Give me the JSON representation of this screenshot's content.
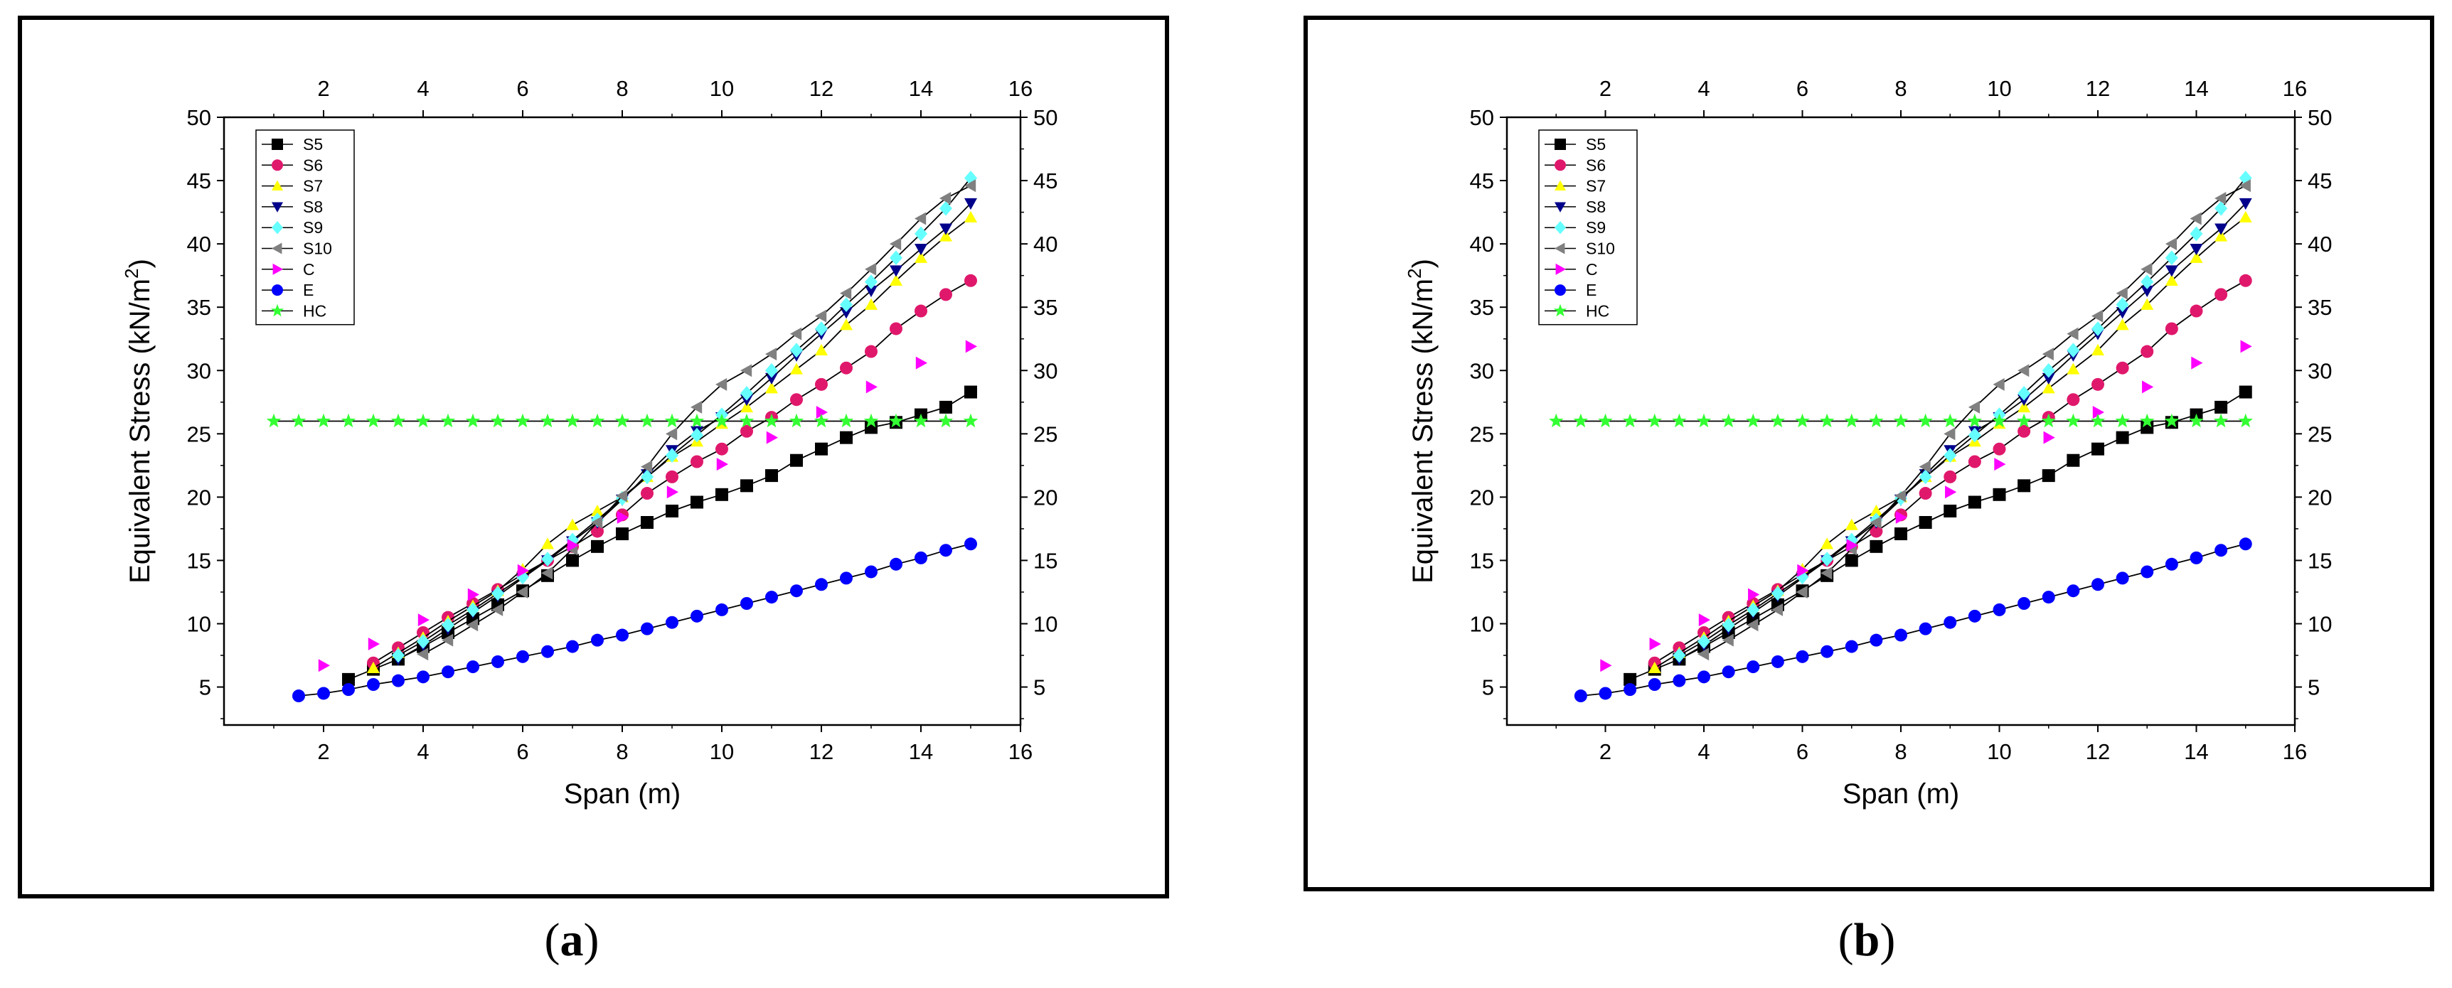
{
  "captions": {
    "a": {
      "open": "(",
      "letter": "a",
      "close": ")"
    },
    "b": {
      "open": "(",
      "letter": "b",
      "close": ")"
    }
  },
  "chart_data": [
    {
      "panel": "a",
      "type": "scatter",
      "xlabel": "Span (m)",
      "ylabel_prefix": "Equivalent Stress (kN/m",
      "ylabel_sup": "2",
      "ylabel_suffix": ")",
      "xlim": [
        0,
        16
      ],
      "ylim": [
        2,
        50
      ],
      "x_ticks": [
        "2",
        "4",
        "6",
        "8",
        "10",
        "12",
        "14",
        "16"
      ],
      "y_ticks": [
        "5",
        "10",
        "15",
        "20",
        "25",
        "30",
        "35",
        "40",
        "45",
        "50"
      ],
      "legend_position": "top-left",
      "series": [
        {
          "name": "S5",
          "color": "#000000",
          "marker": "square",
          "x": [
            2.5,
            3,
            3.5,
            4,
            4.5,
            5,
            5.5,
            6,
            6.5,
            7,
            7.5,
            8,
            8.5,
            9,
            9.5,
            10,
            10.5,
            11,
            11.5,
            12,
            12.5,
            13,
            13.5,
            14,
            14.5,
            15
          ],
          "y": [
            5.6,
            6.4,
            7.2,
            8.2,
            9.3,
            10.4,
            11.5,
            12.6,
            13.8,
            15.0,
            16.1,
            17.1,
            18.0,
            18.9,
            19.6,
            20.2,
            20.9,
            21.7,
            22.9,
            23.8,
            24.7,
            25.5,
            25.9,
            26.5,
            27.1,
            28.3
          ]
        },
        {
          "name": "S6",
          "color": "#e0186c",
          "marker": "circle",
          "x": [
            3,
            3.5,
            4,
            4.5,
            5,
            5.5,
            6,
            6.5,
            7,
            7.5,
            8,
            8.5,
            9,
            9.5,
            10,
            10.5,
            11,
            11.5,
            12,
            12.5,
            13,
            13.5,
            14,
            14.5,
            15
          ],
          "y": [
            6.9,
            8.1,
            9.3,
            10.5,
            11.6,
            12.7,
            13.9,
            15.0,
            16.1,
            17.3,
            18.6,
            20.3,
            21.6,
            22.8,
            23.8,
            25.2,
            26.3,
            27.7,
            28.9,
            30.2,
            31.5,
            33.3,
            34.7,
            36.0,
            37.1
          ]
        },
        {
          "name": "S7",
          "color": "#ffff00",
          "marker": "triangle-up",
          "x": [
            3,
            3.5,
            4,
            4.5,
            5,
            5.5,
            6,
            6.5,
            7,
            7.5,
            8,
            8.5,
            9,
            9.5,
            10,
            10.5,
            11,
            11.5,
            12,
            12.5,
            13,
            13.5,
            14,
            14.5,
            15
          ],
          "y": [
            6.5,
            7.7,
            8.9,
            10.2,
            11.4,
            12.6,
            14.3,
            16.3,
            17.8,
            18.9,
            20.0,
            21.6,
            23.2,
            24.4,
            25.8,
            27.1,
            28.6,
            30.1,
            31.6,
            33.6,
            35.2,
            37.1,
            38.9,
            40.6,
            42.1
          ]
        },
        {
          "name": "S8",
          "color": "#00008b",
          "marker": "triangle-down",
          "x": [
            3.5,
            4,
            4.5,
            5,
            5.5,
            6,
            6.5,
            7,
            7.5,
            8,
            8.5,
            9,
            9.5,
            10,
            10.5,
            11,
            11.5,
            12,
            12.5,
            13,
            13.5,
            14,
            14.5,
            15
          ],
          "y": [
            7.2,
            8.3,
            9.6,
            10.9,
            12.2,
            13.6,
            15.0,
            16.5,
            18.0,
            19.8,
            21.8,
            23.7,
            25.2,
            26.3,
            27.7,
            29.4,
            31.2,
            32.9,
            34.6,
            36.3,
            37.9,
            39.6,
            41.2,
            43.2
          ]
        },
        {
          "name": "S9",
          "color": "#66ffff",
          "marker": "diamond",
          "x": [
            3.5,
            4,
            4.5,
            5,
            5.5,
            6,
            6.5,
            7,
            7.5,
            8,
            8.5,
            9,
            9.5,
            10,
            10.5,
            11,
            11.5,
            12,
            12.5,
            13,
            13.5,
            14,
            14.5,
            15
          ],
          "y": [
            7.5,
            8.6,
            9.9,
            11.1,
            12.4,
            13.7,
            15.1,
            16.6,
            18.2,
            19.9,
            21.6,
            23.3,
            24.9,
            26.5,
            28.2,
            30.0,
            31.6,
            33.3,
            35.2,
            37.0,
            38.9,
            40.8,
            42.8,
            45.2
          ]
        },
        {
          "name": "S10",
          "color": "#808080",
          "marker": "triangle-left",
          "x": [
            4,
            4.5,
            5,
            5.5,
            6,
            6.5,
            7,
            7.5,
            8,
            8.5,
            9,
            9.5,
            10,
            10.5,
            11,
            11.5,
            12,
            12.5,
            13,
            13.5,
            14,
            14.5,
            15
          ],
          "y": [
            7.6,
            8.7,
            9.9,
            11.1,
            12.5,
            14.0,
            15.9,
            18.0,
            20.1,
            22.4,
            25.0,
            27.1,
            28.9,
            30.0,
            31.3,
            32.9,
            34.3,
            36.1,
            38.0,
            40.0,
            42.0,
            43.6,
            44.6
          ]
        },
        {
          "name": "C",
          "color": "#ff00ff",
          "marker": "triangle-right",
          "x": [
            2,
            3,
            4,
            5,
            6,
            7,
            8,
            9,
            10,
            11,
            12,
            13,
            14,
            15
          ],
          "y": [
            6.7,
            8.4,
            10.3,
            12.3,
            14.2,
            16.2,
            18.4,
            20.4,
            22.6,
            24.7,
            26.7,
            28.7,
            30.6,
            31.9
          ]
        },
        {
          "name": "E",
          "color": "#0000ff",
          "marker": "circle",
          "x": [
            1.5,
            2,
            2.5,
            3,
            3.5,
            4,
            4.5,
            5,
            5.5,
            6,
            6.5,
            7,
            7.5,
            8,
            8.5,
            9,
            9.5,
            10,
            10.5,
            11,
            11.5,
            12,
            12.5,
            13,
            13.5,
            14,
            14.5,
            15
          ],
          "y": [
            4.3,
            4.5,
            4.8,
            5.2,
            5.5,
            5.8,
            6.2,
            6.6,
            7.0,
            7.4,
            7.8,
            8.2,
            8.7,
            9.1,
            9.6,
            10.1,
            10.6,
            11.1,
            11.6,
            12.1,
            12.6,
            13.1,
            13.6,
            14.1,
            14.7,
            15.2,
            15.8,
            16.3
          ]
        },
        {
          "name": "HC",
          "color": "#33ff33",
          "marker": "star",
          "x": [
            1,
            1.5,
            2,
            2.5,
            3,
            3.5,
            4,
            4.5,
            5,
            5.5,
            6,
            6.5,
            7,
            7.5,
            8,
            8.5,
            9,
            9.5,
            10,
            10.5,
            11,
            11.5,
            12,
            12.5,
            13,
            13.5,
            14,
            14.5,
            15
          ],
          "y": [
            26,
            26,
            26,
            26,
            26,
            26,
            26,
            26,
            26,
            26,
            26,
            26,
            26,
            26,
            26,
            26,
            26,
            26,
            26,
            26,
            26,
            26,
            26,
            26,
            26,
            26,
            26,
            26,
            26
          ]
        }
      ]
    },
    {
      "panel": "b",
      "type": "scatter",
      "xlabel": "Span (m)",
      "ylabel_prefix": "Equivalent Stress (kN/m",
      "ylabel_sup": "2",
      "ylabel_suffix": ")",
      "xlim": [
        0,
        16
      ],
      "ylim": [
        2,
        50
      ],
      "x_ticks": [
        "2",
        "4",
        "6",
        "8",
        "10",
        "12",
        "14",
        "16"
      ],
      "y_ticks": [
        "5",
        "10",
        "15",
        "20",
        "25",
        "30",
        "35",
        "40",
        "45",
        "50"
      ],
      "legend_position": "top-left",
      "series": [
        {
          "name": "S5",
          "color": "#000000",
          "marker": "square",
          "x": [
            2.5,
            3,
            3.5,
            4,
            4.5,
            5,
            5.5,
            6,
            6.5,
            7,
            7.5,
            8,
            8.5,
            9,
            9.5,
            10,
            10.5,
            11,
            11.5,
            12,
            12.5,
            13,
            13.5,
            14,
            14.5,
            15
          ],
          "y": [
            5.6,
            6.4,
            7.2,
            8.2,
            9.3,
            10.4,
            11.5,
            12.6,
            13.8,
            15.0,
            16.1,
            17.1,
            18.0,
            18.9,
            19.6,
            20.2,
            20.9,
            21.7,
            22.9,
            23.8,
            24.7,
            25.5,
            25.9,
            26.5,
            27.1,
            28.3
          ]
        },
        {
          "name": "S6",
          "color": "#e0186c",
          "marker": "circle",
          "x": [
            3,
            3.5,
            4,
            4.5,
            5,
            5.5,
            6,
            6.5,
            7,
            7.5,
            8,
            8.5,
            9,
            9.5,
            10,
            10.5,
            11,
            11.5,
            12,
            12.5,
            13,
            13.5,
            14,
            14.5,
            15
          ],
          "y": [
            6.9,
            8.1,
            9.3,
            10.5,
            11.6,
            12.7,
            13.9,
            15.0,
            16.1,
            17.3,
            18.6,
            20.3,
            21.6,
            22.8,
            23.8,
            25.2,
            26.3,
            27.7,
            28.9,
            30.2,
            31.5,
            33.3,
            34.7,
            36.0,
            37.1
          ]
        },
        {
          "name": "S7",
          "color": "#ffff00",
          "marker": "triangle-up",
          "x": [
            3,
            3.5,
            4,
            4.5,
            5,
            5.5,
            6,
            6.5,
            7,
            7.5,
            8,
            8.5,
            9,
            9.5,
            10,
            10.5,
            11,
            11.5,
            12,
            12.5,
            13,
            13.5,
            14,
            14.5,
            15
          ],
          "y": [
            6.5,
            7.7,
            8.9,
            10.2,
            11.4,
            12.6,
            14.3,
            16.3,
            17.8,
            18.9,
            20.0,
            21.6,
            23.2,
            24.4,
            25.8,
            27.1,
            28.6,
            30.1,
            31.6,
            33.6,
            35.2,
            37.1,
            38.9,
            40.6,
            42.1
          ]
        },
        {
          "name": "S8",
          "color": "#00008b",
          "marker": "triangle-down",
          "x": [
            3.5,
            4,
            4.5,
            5,
            5.5,
            6,
            6.5,
            7,
            7.5,
            8,
            8.5,
            9,
            9.5,
            10,
            10.5,
            11,
            11.5,
            12,
            12.5,
            13,
            13.5,
            14,
            14.5,
            15
          ],
          "y": [
            7.2,
            8.3,
            9.6,
            10.9,
            12.2,
            13.6,
            15.0,
            16.5,
            18.0,
            19.8,
            21.8,
            23.7,
            25.2,
            26.3,
            27.7,
            29.4,
            31.2,
            32.9,
            34.6,
            36.3,
            37.9,
            39.6,
            41.2,
            43.2
          ]
        },
        {
          "name": "S9",
          "color": "#66ffff",
          "marker": "diamond",
          "x": [
            3.5,
            4,
            4.5,
            5,
            5.5,
            6,
            6.5,
            7,
            7.5,
            8,
            8.5,
            9,
            9.5,
            10,
            10.5,
            11,
            11.5,
            12,
            12.5,
            13,
            13.5,
            14,
            14.5,
            15
          ],
          "y": [
            7.5,
            8.6,
            9.9,
            11.1,
            12.4,
            13.7,
            15.1,
            16.6,
            18.2,
            19.9,
            21.6,
            23.3,
            24.9,
            26.5,
            28.2,
            30.0,
            31.6,
            33.3,
            35.2,
            37.0,
            38.9,
            40.8,
            42.8,
            45.2
          ]
        },
        {
          "name": "S10",
          "color": "#808080",
          "marker": "triangle-left",
          "x": [
            4,
            4.5,
            5,
            5.5,
            6,
            6.5,
            7,
            7.5,
            8,
            8.5,
            9,
            9.5,
            10,
            10.5,
            11,
            11.5,
            12,
            12.5,
            13,
            13.5,
            14,
            14.5,
            15
          ],
          "y": [
            7.6,
            8.7,
            9.9,
            11.1,
            12.5,
            14.0,
            15.9,
            18.0,
            20.1,
            22.4,
            25.0,
            27.1,
            28.9,
            30.0,
            31.3,
            32.9,
            34.3,
            36.1,
            38.0,
            40.0,
            42.0,
            43.6,
            44.6
          ]
        },
        {
          "name": "C",
          "color": "#ff00ff",
          "marker": "triangle-right",
          "x": [
            2,
            3,
            4,
            5,
            6,
            7,
            8,
            9,
            10,
            11,
            12,
            13,
            14,
            15
          ],
          "y": [
            6.7,
            8.4,
            10.3,
            12.3,
            14.2,
            16.2,
            18.4,
            20.4,
            22.6,
            24.7,
            26.7,
            28.7,
            30.6,
            31.9
          ]
        },
        {
          "name": "E",
          "color": "#0000ff",
          "marker": "circle",
          "x": [
            1.5,
            2,
            2.5,
            3,
            3.5,
            4,
            4.5,
            5,
            5.5,
            6,
            6.5,
            7,
            7.5,
            8,
            8.5,
            9,
            9.5,
            10,
            10.5,
            11,
            11.5,
            12,
            12.5,
            13,
            13.5,
            14,
            14.5,
            15
          ],
          "y": [
            4.3,
            4.5,
            4.8,
            5.2,
            5.5,
            5.8,
            6.2,
            6.6,
            7.0,
            7.4,
            7.8,
            8.2,
            8.7,
            9.1,
            9.6,
            10.1,
            10.6,
            11.1,
            11.6,
            12.1,
            12.6,
            13.1,
            13.6,
            14.1,
            14.7,
            15.2,
            15.8,
            16.3
          ]
        },
        {
          "name": "HC",
          "color": "#33ff33",
          "marker": "star",
          "x": [
            1,
            1.5,
            2,
            2.5,
            3,
            3.5,
            4,
            4.5,
            5,
            5.5,
            6,
            6.5,
            7,
            7.5,
            8,
            8.5,
            9,
            9.5,
            10,
            10.5,
            11,
            11.5,
            12,
            12.5,
            13,
            13.5,
            14,
            14.5,
            15
          ],
          "y": [
            26,
            26,
            26,
            26,
            26,
            26,
            26,
            26,
            26,
            26,
            26,
            26,
            26,
            26,
            26,
            26,
            26,
            26,
            26,
            26,
            26,
            26,
            26,
            26,
            26,
            26,
            26,
            26,
            26
          ]
        }
      ]
    }
  ]
}
